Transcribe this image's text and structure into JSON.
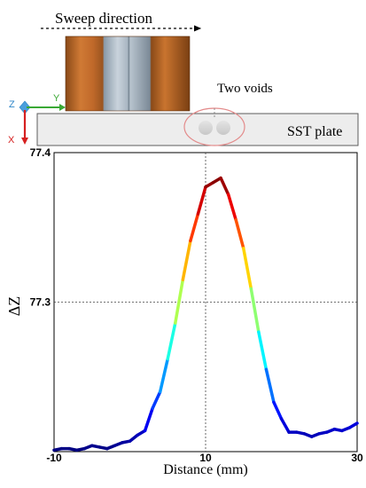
{
  "labels": {
    "sweep_direction": "Sweep direction",
    "two_voids": "Two voids",
    "plate": "SST plate",
    "axis_z": "Z",
    "axis_y": "Y",
    "axis_x": "X"
  },
  "colors": {
    "coil_copper": "#c0692a",
    "coil_steel": "#a9b6c2",
    "plate_fill": "#ededed",
    "void_fill": "#d8d8d8",
    "void_ring": "#e38b8b",
    "axis_z": "#2f86c8",
    "axis_y": "#3aa935",
    "axis_x": "#d62020"
  },
  "chart_data": {
    "type": "line",
    "title": "",
    "xlabel": "Distance (mm)",
    "ylabel": "ΔZ",
    "xlim": [
      -10,
      30
    ],
    "ylim": [
      77.2,
      77.4
    ],
    "xticks": [
      "-10",
      "10",
      "30"
    ],
    "yticks": [
      "77.4",
      "77.3"
    ],
    "grid": "dotted at x=10 and y=77.3",
    "colormap": "jet (value-mapped)",
    "x": [
      -10,
      -9,
      -8,
      -7,
      -6,
      -5,
      -4,
      -3,
      -2,
      -1,
      0,
      1,
      2,
      3,
      4,
      5,
      6,
      7,
      8,
      9,
      10,
      11,
      12,
      13,
      14,
      15,
      16,
      17,
      18,
      19,
      20,
      21,
      22,
      23,
      24,
      25,
      26,
      27,
      28,
      29,
      30
    ],
    "y": [
      77.201,
      77.202,
      77.202,
      77.201,
      77.202,
      77.204,
      77.203,
      77.202,
      77.204,
      77.206,
      77.207,
      77.211,
      77.214,
      77.229,
      77.24,
      77.262,
      77.286,
      77.315,
      77.341,
      77.359,
      77.377,
      77.38,
      77.383,
      77.372,
      77.355,
      77.336,
      77.309,
      77.28,
      77.255,
      77.233,
      77.222,
      77.213,
      77.213,
      77.212,
      77.21,
      77.212,
      77.213,
      77.215,
      77.214,
      77.216,
      77.219
    ]
  }
}
